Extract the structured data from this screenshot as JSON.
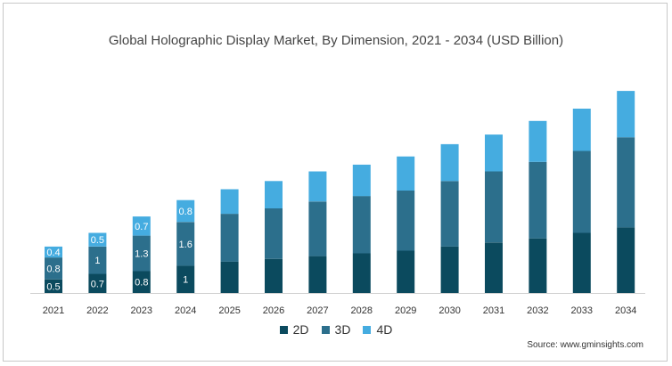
{
  "chart_data": {
    "type": "bar",
    "stacked": true,
    "title": "Global Holographic Display Market, By Dimension, 2021 - 2034 (USD Billion)",
    "categories": [
      "2021",
      "2022",
      "2023",
      "2024",
      "2025",
      "2026",
      "2027",
      "2028",
      "2029",
      "2030",
      "2031",
      "2032",
      "2033",
      "2034"
    ],
    "series": [
      {
        "name": "2D",
        "color": "#0b4a5e",
        "values": [
          0.5,
          0.7,
          0.8,
          1.0,
          1.15,
          1.25,
          1.35,
          1.45,
          1.55,
          1.7,
          1.85,
          2.0,
          2.2,
          2.4
        ]
      },
      {
        "name": "3D",
        "color": "#2c6f8c",
        "values": [
          0.8,
          1.0,
          1.3,
          1.6,
          1.75,
          1.85,
          2.0,
          2.1,
          2.2,
          2.4,
          2.6,
          2.8,
          3.0,
          3.3
        ]
      },
      {
        "name": "4D",
        "color": "#45ace0",
        "values": [
          0.4,
          0.5,
          0.7,
          0.8,
          0.9,
          1.0,
          1.1,
          1.15,
          1.25,
          1.35,
          1.35,
          1.5,
          1.55,
          1.7
        ]
      }
    ],
    "data_labels": [
      {
        "category": "2021",
        "series": "2D",
        "text": "0.5"
      },
      {
        "category": "2021",
        "series": "3D",
        "text": "0.8"
      },
      {
        "category": "2021",
        "series": "4D",
        "text": "0.4"
      },
      {
        "category": "2022",
        "series": "2D",
        "text": "0.7"
      },
      {
        "category": "2022",
        "series": "3D",
        "text": "1"
      },
      {
        "category": "2022",
        "series": "4D",
        "text": "0.5"
      },
      {
        "category": "2023",
        "series": "2D",
        "text": "0.8"
      },
      {
        "category": "2023",
        "series": "3D",
        "text": "1.3"
      },
      {
        "category": "2023",
        "series": "4D",
        "text": "0.7"
      },
      {
        "category": "2024",
        "series": "2D",
        "text": "1"
      },
      {
        "category": "2024",
        "series": "3D",
        "text": "1.6"
      },
      {
        "category": "2024",
        "series": "4D",
        "text": "0.8"
      }
    ],
    "ylim": [
      0,
      7.5
    ],
    "grid": false,
    "legend": "bottom"
  },
  "source": "Source: www.gminsights.com"
}
